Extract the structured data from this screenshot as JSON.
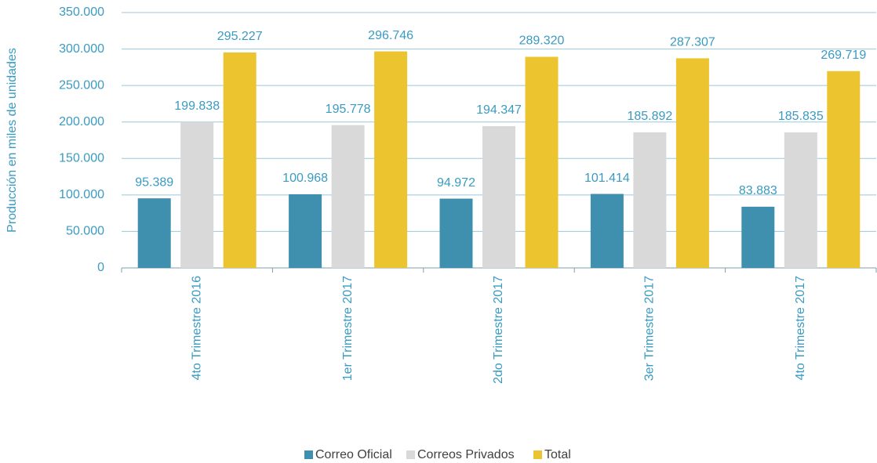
{
  "chart_data": {
    "type": "bar",
    "y_label": "Producción en miles de unidades",
    "categories": [
      "4to Trimestre 2016",
      "1er Trimestre 2017",
      "2do Trimestre 2017",
      "3er Trimestre 2017",
      "4to Trimestre 2017"
    ],
    "series": [
      {
        "name": "Correo Oficial",
        "color": "#3f8fae",
        "values": [
          95389,
          100968,
          94972,
          101414,
          83883
        ],
        "value_labels": [
          "95.389",
          "100.968",
          "94.972",
          "101.414",
          "83.883"
        ]
      },
      {
        "name": "Correos Privados",
        "color": "#d9d9d9",
        "values": [
          199838,
          195778,
          194347,
          185892,
          185835
        ],
        "value_labels": [
          "199.838",
          "195.778",
          "194.347",
          "185.892",
          "185.835"
        ]
      },
      {
        "name": "Total",
        "color": "#ecc430",
        "values": [
          295227,
          296746,
          289320,
          287307,
          269719
        ],
        "value_labels": [
          "295.227",
          "296.746",
          "289.320",
          "287.307",
          "269.719"
        ]
      }
    ],
    "ylim": [
      0,
      350000
    ],
    "yticks": [
      0,
      {
        "value": 50000,
        "label": "50.000"
      },
      {
        "value": 100000,
        "label": "100.000"
      },
      {
        "value": 150000,
        "label": "150.000"
      },
      {
        "value": 200000,
        "label": "200.000"
      },
      {
        "value": 250000,
        "label": "250.000"
      },
      {
        "value": 300000,
        "label": "300.000"
      },
      {
        "value": 350000,
        "label": "350.000"
      }
    ],
    "grid": true
  }
}
